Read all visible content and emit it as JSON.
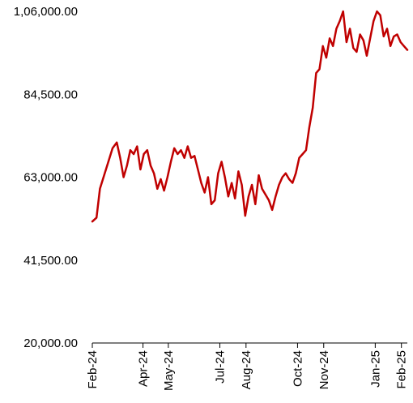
{
  "chart_data": {
    "type": "line",
    "title": "",
    "xlabel": "",
    "ylabel": "",
    "ylim": [
      20000,
      106000
    ],
    "yticks": [
      "1,06,000.00",
      "84,500.00",
      "63,000.00",
      "41,500.00",
      "20,000.00"
    ],
    "ytick_values": [
      106000,
      84500,
      63000,
      41500,
      20000
    ],
    "xticks": [
      "Feb-24",
      "Apr-24",
      "May-24",
      "Jul-24",
      "Aug-24",
      "Oct-24",
      "Nov-24",
      "Jan-25",
      "Feb-25"
    ],
    "xtick_dates": [
      "2024-02-01",
      "2024-04-01",
      "2024-05-01",
      "2024-07-01",
      "2024-08-01",
      "2024-10-01",
      "2024-11-01",
      "2025-01-01",
      "2025-02-01"
    ],
    "line_color": "#c00000",
    "grid": false,
    "legend": "none",
    "series": [
      {
        "x": [
          "2024-02-01",
          "2024-02-06",
          "2024-02-10",
          "2024-02-15",
          "2024-02-20",
          "2024-02-25",
          "2024-03-01",
          "2024-03-05",
          "2024-03-09",
          "2024-03-13",
          "2024-03-17",
          "2024-03-21",
          "2024-03-25",
          "2024-03-29",
          "2024-04-02",
          "2024-04-06",
          "2024-04-10",
          "2024-04-14",
          "2024-04-18",
          "2024-04-22",
          "2024-04-26",
          "2024-04-30",
          "2024-05-04",
          "2024-05-08",
          "2024-05-12",
          "2024-05-16",
          "2024-05-20",
          "2024-05-24",
          "2024-05-28",
          "2024-06-01",
          "2024-06-05",
          "2024-06-09",
          "2024-06-13",
          "2024-06-17",
          "2024-06-21",
          "2024-06-25",
          "2024-06-29",
          "2024-07-03",
          "2024-07-07",
          "2024-07-11",
          "2024-07-15",
          "2024-07-19",
          "2024-07-23",
          "2024-07-27",
          "2024-07-31",
          "2024-08-04",
          "2024-08-08",
          "2024-08-12",
          "2024-08-16",
          "2024-08-20",
          "2024-08-24",
          "2024-08-28",
          "2024-09-01",
          "2024-09-05",
          "2024-09-09",
          "2024-09-13",
          "2024-09-17",
          "2024-09-21",
          "2024-09-25",
          "2024-09-29",
          "2024-10-03",
          "2024-10-07",
          "2024-10-11",
          "2024-10-15",
          "2024-10-19",
          "2024-10-23",
          "2024-10-27",
          "2024-10-31",
          "2024-11-04",
          "2024-11-08",
          "2024-11-12",
          "2024-11-16",
          "2024-11-20",
          "2024-11-24",
          "2024-11-28",
          "2024-12-02",
          "2024-12-06",
          "2024-12-10",
          "2024-12-14",
          "2024-12-18",
          "2024-12-22",
          "2024-12-26",
          "2024-12-30",
          "2025-01-03",
          "2025-01-07",
          "2025-01-11",
          "2025-01-15",
          "2025-01-19",
          "2025-01-23",
          "2025-01-27",
          "2025-01-31",
          "2025-02-04",
          "2025-02-08"
        ],
        "values": [
          51500,
          52500,
          60000,
          63500,
          67000,
          70500,
          72000,
          68000,
          63000,
          66000,
          70000,
          69000,
          71000,
          65000,
          69000,
          70000,
          66000,
          64000,
          60000,
          62500,
          59500,
          63000,
          67000,
          70500,
          69000,
          70000,
          68000,
          71000,
          68000,
          68500,
          65000,
          61500,
          59000,
          63000,
          56000,
          57000,
          64000,
          67000,
          63000,
          58000,
          61500,
          57500,
          64500,
          61000,
          53000,
          58000,
          61000,
          56000,
          63500,
          60000,
          58500,
          57000,
          54500,
          58000,
          61000,
          63000,
          64000,
          62500,
          61500,
          64000,
          68000,
          69000,
          70000,
          76000,
          81000,
          90000,
          91000,
          97000,
          94000,
          99000,
          97000,
          101500,
          103500,
          106000,
          98000,
          101500,
          96500,
          95500,
          100000,
          98500,
          94500,
          99000,
          103500,
          106000,
          105000,
          99500,
          101500,
          97000,
          99500,
          100000,
          98000,
          97000,
          96000
        ],
        "color": "#c00000"
      }
    ]
  }
}
